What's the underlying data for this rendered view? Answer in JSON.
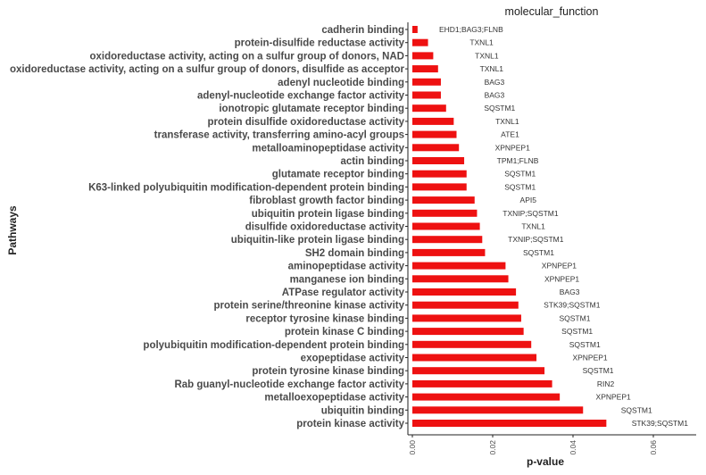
{
  "chart_data": {
    "type": "bar",
    "orientation": "horizontal",
    "title": "molecular_function",
    "xlabel": "p-value",
    "ylabel": "Pathways",
    "xlim": [
      0,
      0.0695
    ],
    "xticks": [
      0.0,
      0.02,
      0.04,
      0.06
    ],
    "xtick_labels": [
      "0.00",
      "0.02",
      "0.04",
      "0.06"
    ],
    "bar_color": "#ee1111",
    "grid": false,
    "legend": "none",
    "categories": [
      "cadherin binding",
      "protein-disulfide reductase activity",
      "oxidoreductase activity, acting on a sulfur group of donors, NAD",
      "oxidoreductase activity, acting on a sulfur group of donors, disulfide as acceptor",
      "adenyl nucleotide binding",
      "adenyl-nucleotide exchange factor activity",
      "ionotropic glutamate receptor binding",
      "protein disulfide oxidoreductase activity",
      "transferase activity, transferring amino-acyl groups",
      "metalloaminopeptidase activity",
      "actin binding",
      "glutamate receptor binding",
      "K63-linked polyubiquitin modification-dependent protein binding",
      "fibroblast growth factor binding",
      "ubiquitin protein ligase binding",
      "disulfide oxidoreductase activity",
      "ubiquitin-like protein ligase binding",
      "SH2 domain binding",
      "aminopeptidase activity",
      "manganese ion binding",
      "ATPase regulator activity",
      "protein serine/threonine kinase activity",
      "receptor tyrosine kinase binding",
      "protein kinase C binding",
      "polyubiquitin modification-dependent protein binding",
      "exopeptidase activity",
      "protein tyrosine kinase binding",
      "Rab guanyl-nucleotide exchange factor activity",
      "metalloexopeptidase activity",
      "ubiquitin binding",
      "protein kinase activity"
    ],
    "values": [
      0.0013,
      0.0039,
      0.0052,
      0.0064,
      0.0071,
      0.0071,
      0.0084,
      0.0103,
      0.011,
      0.0116,
      0.0129,
      0.0135,
      0.0135,
      0.0155,
      0.0161,
      0.0168,
      0.0174,
      0.0181,
      0.0232,
      0.0239,
      0.0258,
      0.0264,
      0.0271,
      0.0277,
      0.0296,
      0.0309,
      0.0329,
      0.0348,
      0.0367,
      0.0425,
      0.0483
    ],
    "gene_labels": [
      "EHD1;BAG3;FLNB",
      "TXNL1",
      "TXNL1",
      "TXNL1",
      "BAG3",
      "BAG3",
      "SQSTM1",
      "TXNL1",
      "ATE1",
      "XPNPEP1",
      "TPM1;FLNB",
      "SQSTM1",
      "SQSTM1",
      "API5",
      "TXNIP;SQSTM1",
      "TXNL1",
      "TXNIP;SQSTM1",
      "SQSTM1",
      "XPNPEP1",
      "XPNPEP1",
      "BAG3",
      "STK39;SQSTM1",
      "SQSTM1",
      "SQSTM1",
      "SQSTM1",
      "XPNPEP1",
      "SQSTM1",
      "RIN2",
      "XPNPEP1",
      "SQSTM1",
      "STK39;SQSTM1"
    ]
  }
}
